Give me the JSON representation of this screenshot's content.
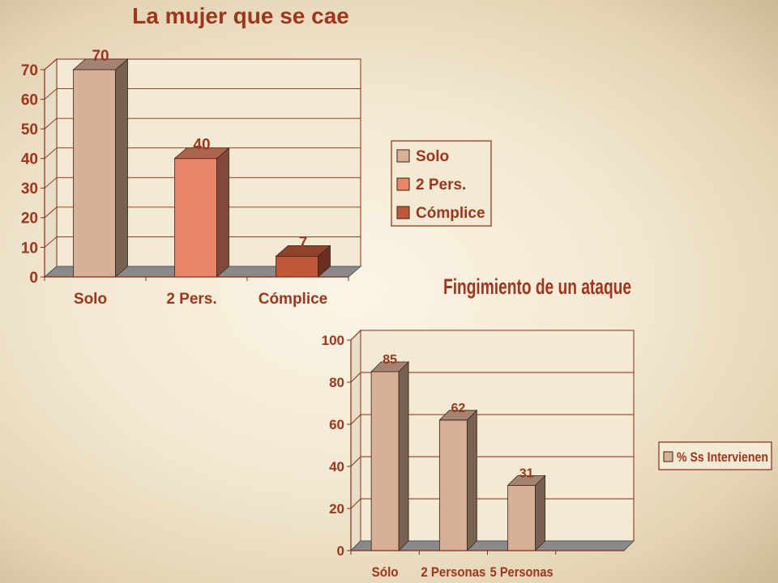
{
  "colors": {
    "text": "#a0341c",
    "axis": "#8a2a14",
    "floor": "#8a8a8a",
    "wall": "#f3ead3"
  },
  "chart_data": [
    {
      "type": "bar",
      "title": "La mujer que se cae",
      "categories": [
        "Solo",
        "2 Pers.",
        "Cómplice"
      ],
      "values": [
        70,
        40,
        7
      ],
      "bar_colors": [
        "#d8b096",
        "#e8866a",
        "#c05838"
      ],
      "ylim": [
        0,
        70
      ],
      "yticks": [
        "0",
        "10",
        "20",
        "30",
        "40",
        "50",
        "60",
        "70"
      ],
      "legend": {
        "position": "right",
        "entries": [
          "Solo",
          "2 Pers.",
          "Cómplice"
        ]
      },
      "grid": true
    },
    {
      "type": "bar",
      "title": "Fingimiento de un ataque",
      "categories": [
        "Sólo",
        "2 Personas",
        "5 Personas"
      ],
      "series": [
        {
          "name": "% Ss Intervienen",
          "values": [
            85,
            62,
            31
          ]
        }
      ],
      "bar_color": "#d8b096",
      "ylim": [
        0,
        100
      ],
      "yticks": [
        "0",
        "20",
        "40",
        "60",
        "80",
        "100"
      ],
      "legend": {
        "position": "right",
        "entries": [
          "% Ss Intervienen"
        ]
      },
      "grid": true
    }
  ]
}
